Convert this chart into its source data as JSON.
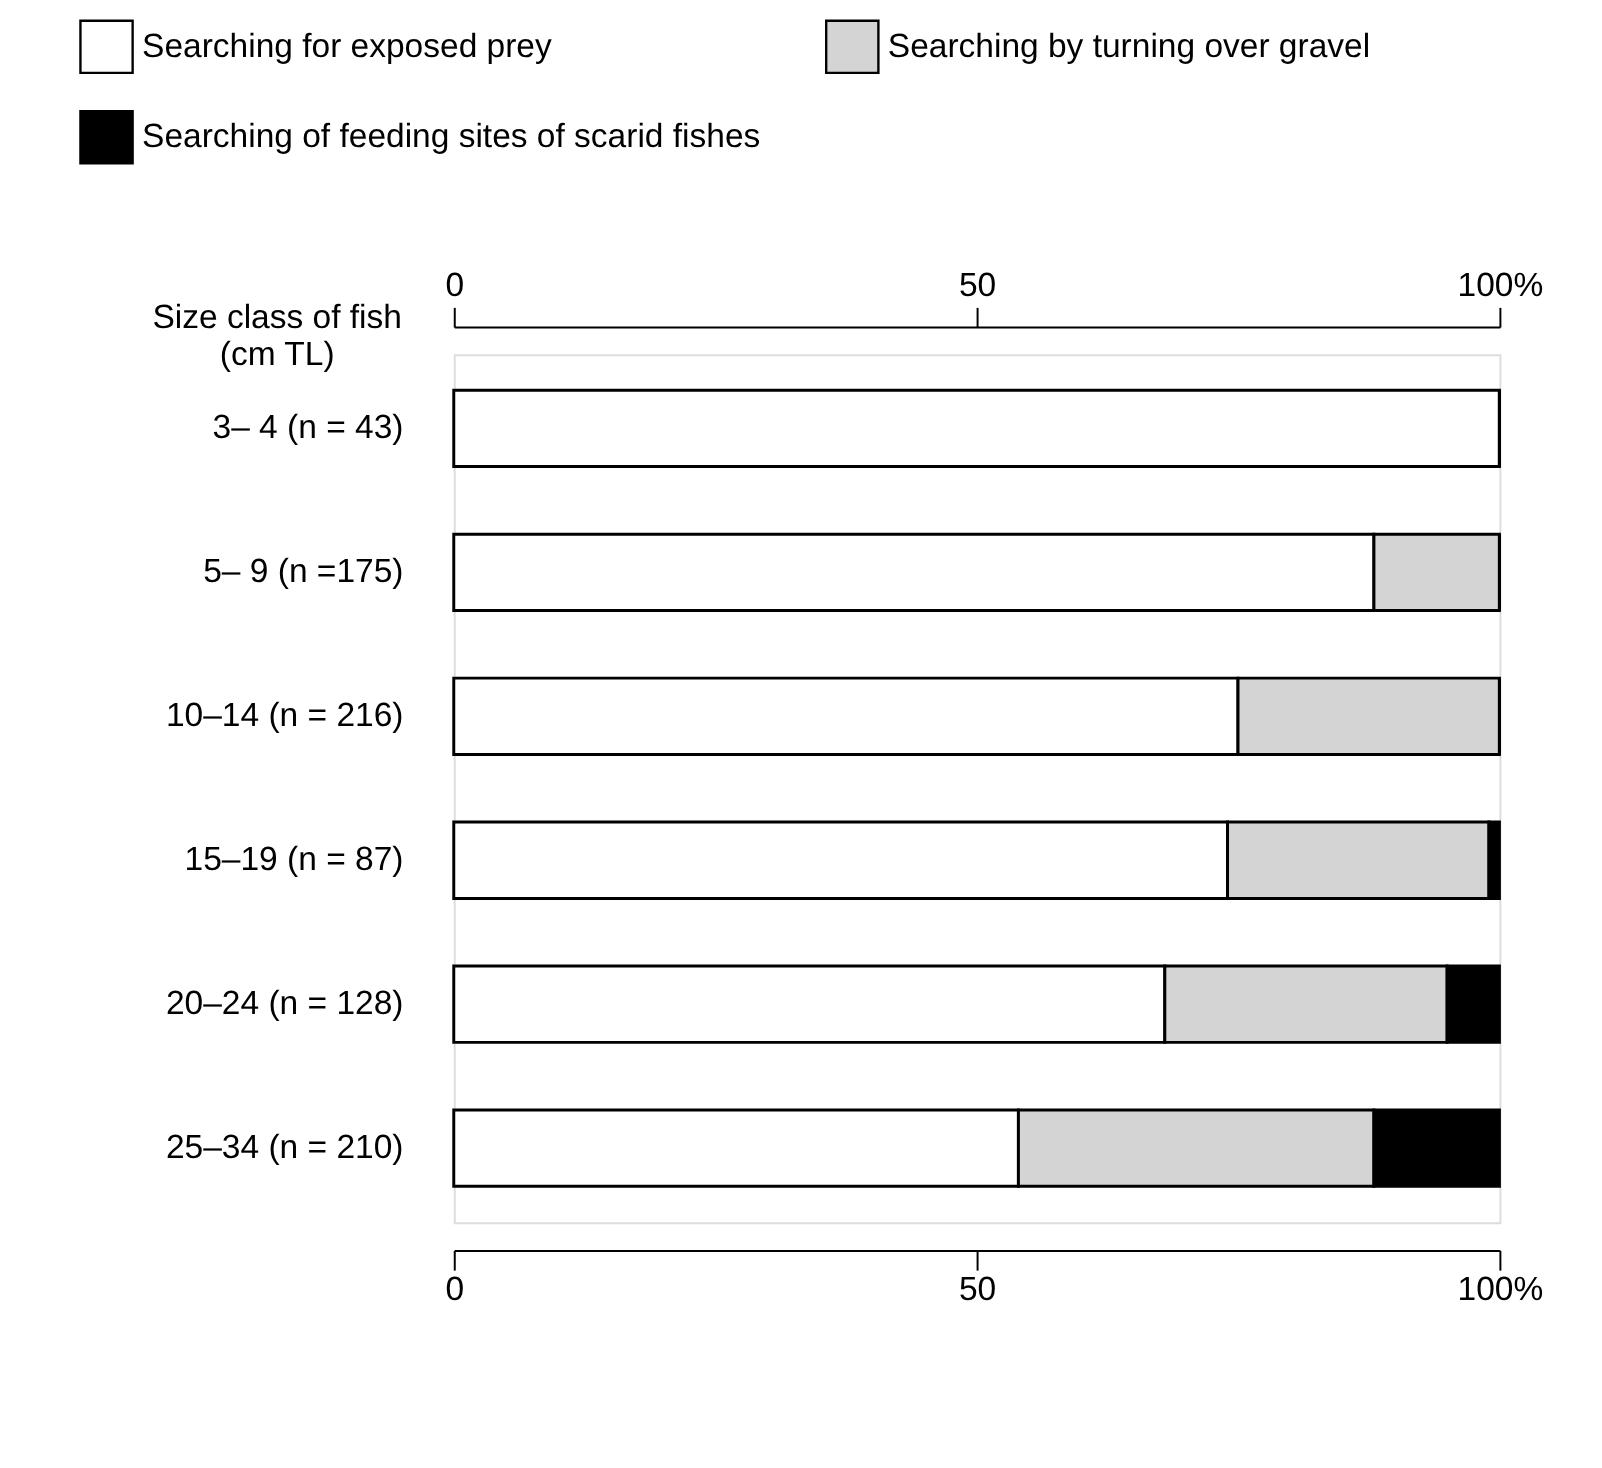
{
  "chart_data": {
    "type": "bar",
    "orientation": "horizontal",
    "stacked": true,
    "ylabel": "Size class of fish\n(cm TL)",
    "categories": [
      "3– 4 (n = 43)",
      "5– 9 (n =175)",
      "10–14 (n = 216)",
      "15–19 (n = 87)",
      "20–24 (n = 128)",
      "25–34 (n = 210)"
    ],
    "series": [
      {
        "name": "Searching for exposed prey",
        "color": "#ffffff",
        "values": [
          100,
          88,
          75,
          74,
          68,
          54
        ]
      },
      {
        "name": "Searching by turning over gravel",
        "color": "#d4d4d4",
        "values": [
          0,
          12,
          25,
          25,
          27,
          34
        ]
      },
      {
        "name": "Searching of feeding sites of scarid fishes",
        "color": "#000000",
        "values": [
          0,
          0,
          0,
          1,
          5,
          12
        ]
      }
    ],
    "xlim": [
      0,
      100
    ],
    "xticks": [
      0,
      50,
      {
        "value": 100,
        "label": "100%"
      }
    ],
    "x2lim": [
      0,
      100
    ],
    "x2ticks": [
      0,
      50,
      {
        "value": 100,
        "label": "100%"
      }
    ],
    "grid": false,
    "legend": "top"
  }
}
